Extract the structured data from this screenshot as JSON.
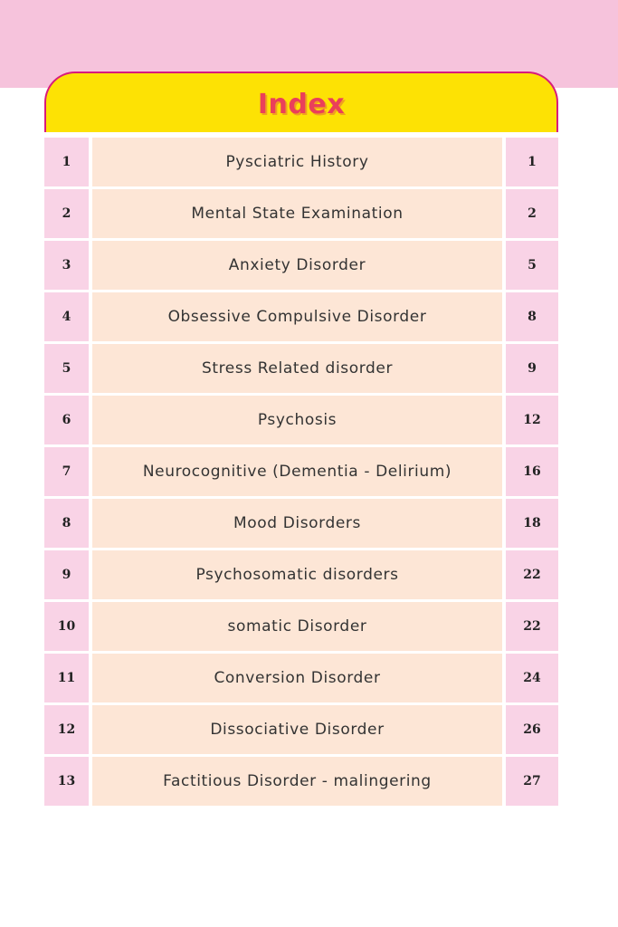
{
  "title": "Index",
  "colors": {
    "band": "#f6c3dc",
    "header": "#fde204",
    "title": "#ea3f5a",
    "cell_pink": "#f9d3e6",
    "cell_peach": "#fde6d6"
  },
  "entries": [
    {
      "num": "1",
      "topic": "Pysciatric History",
      "page": "1"
    },
    {
      "num": "2",
      "topic": "Mental State Examination",
      "page": "2"
    },
    {
      "num": "3",
      "topic": "Anxiety Disorder",
      "page": "5"
    },
    {
      "num": "4",
      "topic": "Obsessive Compulsive Disorder",
      "page": "8"
    },
    {
      "num": "5",
      "topic": "Stress Related disorder",
      "page": "9"
    },
    {
      "num": "6",
      "topic": "Psychosis",
      "page": "12"
    },
    {
      "num": "7",
      "topic": "Neurocognitive (Dementia - Delirium)",
      "page": "16"
    },
    {
      "num": "8",
      "topic": "Mood Disorders",
      "page": "18"
    },
    {
      "num": "9",
      "topic": "Psychosomatic disorders",
      "page": "22"
    },
    {
      "num": "10",
      "topic": "somatic Disorder",
      "page": "22"
    },
    {
      "num": "11",
      "topic": "Conversion Disorder",
      "page": "24"
    },
    {
      "num": "12",
      "topic": "Dissociative Disorder",
      "page": "26"
    },
    {
      "num": "13",
      "topic": "Factitious Disorder - malingering",
      "page": "27"
    }
  ]
}
